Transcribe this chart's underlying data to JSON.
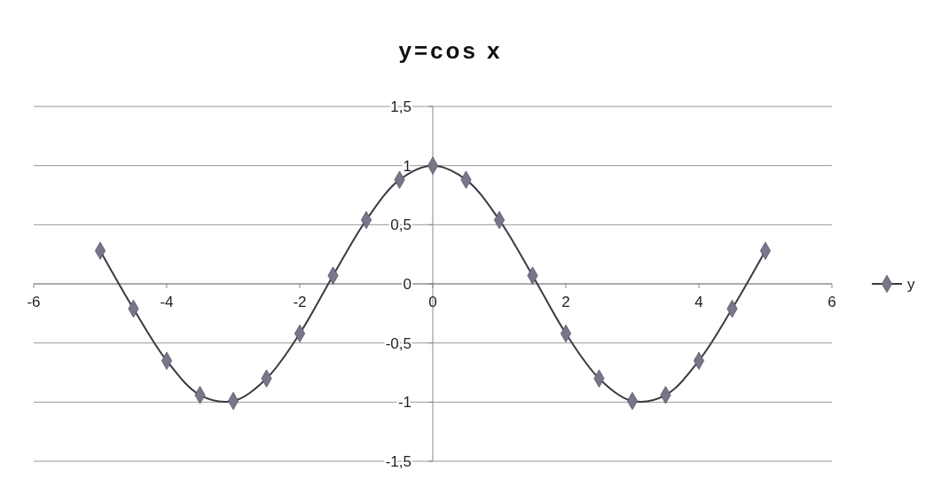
{
  "chart_data": {
    "type": "line",
    "title": "y=cos x",
    "x": [
      -5,
      -4.5,
      -4,
      -3.5,
      -3,
      -2.5,
      -2,
      -1.5,
      -1,
      -0.5,
      0,
      0.5,
      1,
      1.5,
      2,
      2.5,
      3,
      3.5,
      4,
      4.5,
      5
    ],
    "series": [
      {
        "name": "y",
        "color": "#77778a",
        "values": [
          0.28,
          -0.21,
          -0.65,
          -0.94,
          -0.99,
          -0.8,
          -0.42,
          0.07,
          0.54,
          0.88,
          1,
          0.88,
          0.54,
          0.07,
          -0.42,
          -0.8,
          -0.99,
          -0.94,
          -0.65,
          -0.21,
          0.28
        ]
      }
    ],
    "xlim": [
      -6,
      6
    ],
    "xticks": [
      -6,
      -4,
      -2,
      0,
      2,
      4,
      6
    ],
    "ylim": [
      -1.5,
      1.5
    ],
    "yticks": [
      {
        "value": -1.5,
        "label": "-1,5"
      },
      -1,
      {
        "value": -0.5,
        "label": "-0,5"
      },
      0,
      {
        "value": 0.5,
        "label": "0,5"
      },
      1,
      {
        "value": 1.5,
        "label": "1,5"
      }
    ],
    "grid": "y",
    "legend": "right",
    "marker": "diamond",
    "line_style": "solid"
  }
}
